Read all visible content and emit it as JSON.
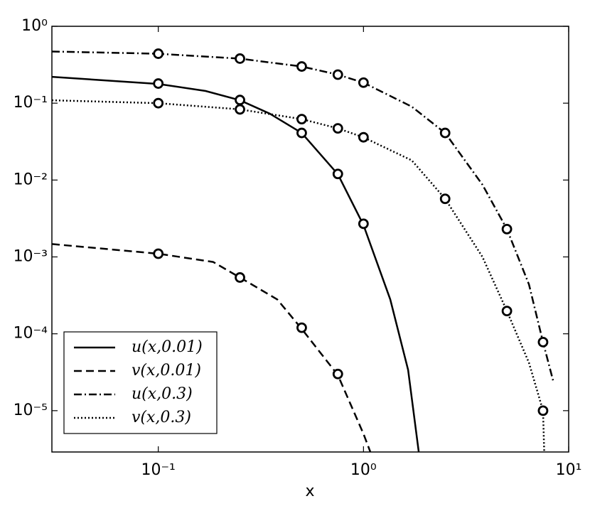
{
  "chart_data": {
    "type": "line",
    "xlabel": "x",
    "xscale": "log",
    "yscale": "log",
    "xlim": [
      0.0303,
      10
    ],
    "ylim": [
      2.9e-06,
      1
    ],
    "xticks": [
      {
        "value": 0.1,
        "label": "10⁻¹"
      },
      {
        "value": 1,
        "label": "10⁰"
      },
      {
        "value": 10,
        "label": "10¹"
      }
    ],
    "yticks": [
      {
        "value": 1e-05,
        "label": "10⁻⁵"
      },
      {
        "value": 0.0001,
        "label": "10⁻⁴"
      },
      {
        "value": 0.001,
        "label": "10⁻³"
      },
      {
        "value": 0.01,
        "label": "10⁻²"
      },
      {
        "value": 0.1,
        "label": "10⁻¹"
      },
      {
        "value": 1,
        "label": "10⁰"
      }
    ],
    "legend": "lower left",
    "series": [
      {
        "name": "u(x,0.01)",
        "color": "#000000",
        "linestyle": "solid",
        "x": [
          0.0303,
          0.1,
          0.17,
          0.25,
          0.35,
          0.5,
          0.75,
          1,
          1.35,
          1.65,
          1.86
        ],
        "values": [
          0.22,
          0.178,
          0.144,
          0.109,
          0.073,
          0.041,
          0.0119,
          0.0026,
          0.00028,
          3.4e-05,
          2.9e-06
        ],
        "markers": {
          "x": [
            0.1,
            0.25,
            0.5,
            0.75,
            1
          ],
          "values": [
            0.18,
            0.11,
            0.041,
            0.012,
            0.0027
          ]
        }
      },
      {
        "name": "v(x,0.01)",
        "color": "#000000",
        "linestyle": "dashed",
        "x": [
          0.0303,
          0.1,
          0.185,
          0.25,
          0.38,
          0.5,
          0.75,
          1,
          1.08
        ],
        "values": [
          0.00147,
          0.0011,
          0.00086,
          0.00054,
          0.00028,
          0.000116,
          2.9e-05,
          5e-06,
          2.9e-06
        ],
        "markers": {
          "x": [
            0.1,
            0.25,
            0.5,
            0.75
          ],
          "values": [
            0.0011,
            0.00054,
            0.00012,
            3e-05
          ]
        }
      },
      {
        "name": "u(x,0.3)",
        "color": "#000000",
        "linestyle": "dashdot",
        "x": [
          0.0303,
          0.1,
          0.25,
          0.5,
          0.75,
          1,
          1.72,
          2.5,
          3.8,
          5,
          6.4,
          7.5,
          8.45
        ],
        "values": [
          0.47,
          0.44,
          0.38,
          0.3,
          0.235,
          0.185,
          0.09,
          0.041,
          0.0087,
          0.0023,
          0.00044,
          7.8e-05,
          2.3e-05
        ],
        "markers": {
          "x": [
            0.1,
            0.25,
            0.5,
            0.75,
            1,
            2.5,
            5,
            7.5
          ],
          "values": [
            0.44,
            0.38,
            0.3,
            0.235,
            0.185,
            0.041,
            0.0023,
            7.8e-05
          ]
        }
      },
      {
        "name": "v(x,0.3)",
        "color": "#000000",
        "linestyle": "dotted",
        "x": [
          0.0303,
          0.1,
          0.25,
          0.5,
          0.75,
          1,
          1.72,
          2.5,
          3.8,
          5,
          6.4,
          7.5,
          7.6
        ],
        "values": [
          0.109,
          0.1,
          0.083,
          0.062,
          0.047,
          0.036,
          0.018,
          0.0057,
          0.001,
          0.000198,
          4.2e-05,
          1e-05,
          2.9e-06
        ],
        "markers": {
          "x": [
            0.1,
            0.25,
            0.5,
            0.75,
            1,
            2.5,
            5,
            7.5
          ],
          "values": [
            0.1,
            0.083,
            0.062,
            0.047,
            0.036,
            0.0057,
            0.000198,
            1e-05
          ]
        }
      }
    ]
  }
}
